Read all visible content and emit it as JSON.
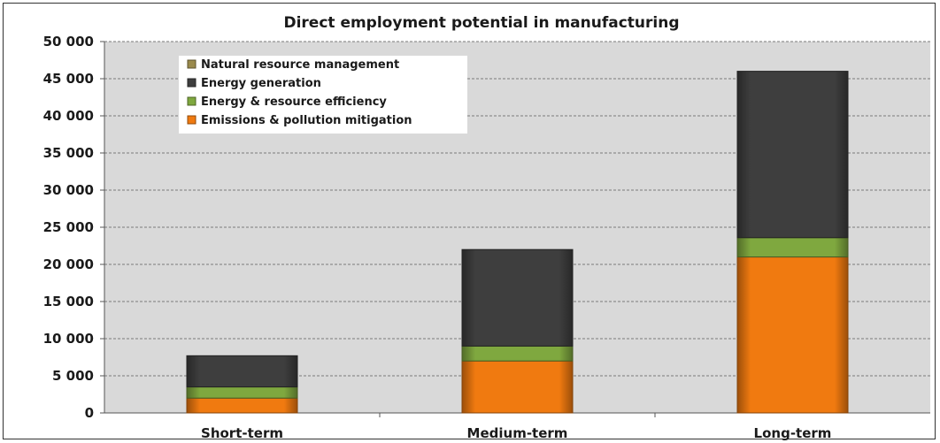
{
  "chart_data": {
    "type": "bar",
    "stacked": true,
    "title": "Direct employment potential in manufacturing",
    "xlabel": "",
    "ylabel": "",
    "categories": [
      "Short-term",
      "Medium-term",
      "Long-term"
    ],
    "ylim": [
      0,
      50000
    ],
    "yticks": [
      0,
      5000,
      10000,
      15000,
      20000,
      25000,
      30000,
      35000,
      40000,
      45000,
      50000
    ],
    "ytick_labels": [
      "0",
      "5 000",
      "10 000",
      "15 000",
      "20 000",
      "25 000",
      "30 000",
      "35 000",
      "40 000",
      "45 000",
      "50 000"
    ],
    "grid": true,
    "legend_position": "top-left",
    "series": [
      {
        "name": "Emissions & pollution mitigation",
        "color": "#F07A10",
        "values": [
          2000,
          7000,
          21000
        ]
      },
      {
        "name": "Energy & resource efficiency",
        "color": "#7FA83F",
        "values": [
          1500,
          2000,
          2600
        ]
      },
      {
        "name": "Energy generation",
        "color": "#3E3E3E",
        "values": [
          4200,
          13000,
          22400
        ]
      },
      {
        "name": "Natural resource management",
        "color": "#9A8A4C",
        "values": [
          0,
          0,
          0
        ]
      }
    ],
    "legend_order": [
      "Natural resource management",
      "Energy generation",
      "Energy & resource efficiency",
      "Emissions & pollution mitigation"
    ]
  }
}
